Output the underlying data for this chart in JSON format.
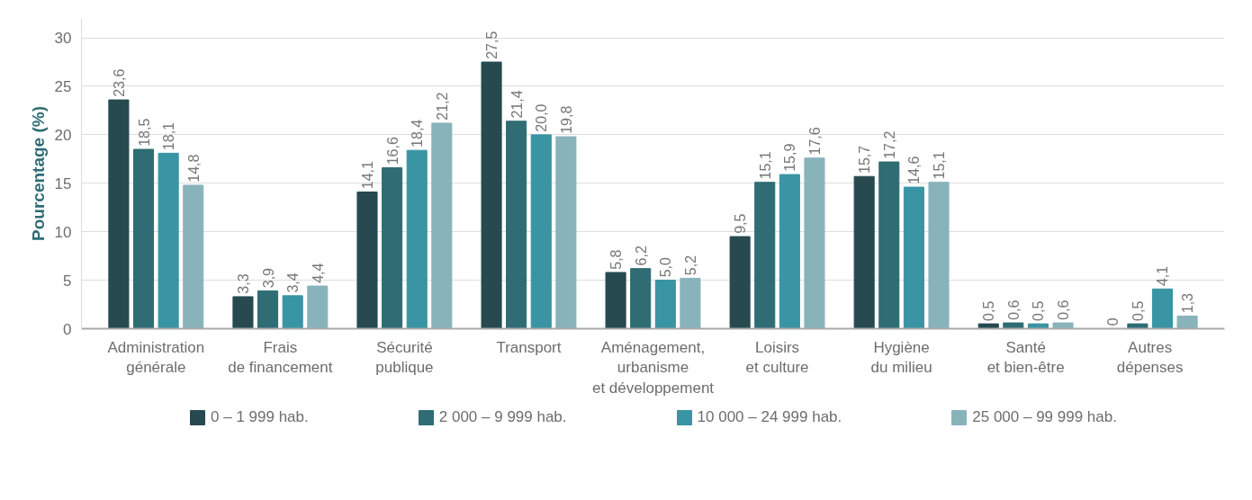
{
  "chart_data": {
    "type": "bar",
    "ylabel": "Pourcentage (%)",
    "categories": [
      "Administration\ngénérale",
      "Frais\nde financement",
      "Sécurité\npublique",
      "Transport",
      "Aménagement,\nurbanisme\net développement",
      "Loisirs\net culture",
      "Hygiène\ndu milieu",
      "Santé\net bien-être",
      "Autres\ndépenses"
    ],
    "series": [
      {
        "name": "0 – 1 999 hab.",
        "color": "#264a50",
        "values": [
          23.6,
          3.3,
          14.1,
          27.5,
          5.8,
          9.5,
          15.7,
          0.5,
          0
        ],
        "value_labels": [
          "23,6",
          "3,3",
          "14,1",
          "27,5",
          "5,8",
          "9,5",
          "15,7",
          "0,5",
          "0"
        ]
      },
      {
        "name": "2 000 – 9 999 hab.",
        "color": "#2f6c74",
        "values": [
          18.5,
          3.9,
          16.6,
          21.4,
          6.2,
          15.1,
          17.2,
          0.6,
          0.5
        ],
        "value_labels": [
          "18,5",
          "3,9",
          "16,6",
          "21,4",
          "6,2",
          "15,1",
          "17,2",
          "0,6",
          "0,5"
        ]
      },
      {
        "name": "10 000 – 24 999 hab.",
        "color": "#3994a3",
        "values": [
          18.1,
          3.4,
          18.4,
          20.0,
          5.0,
          15.9,
          14.6,
          0.5,
          4.1
        ],
        "value_labels": [
          "18,1",
          "3,4",
          "18,4",
          "20,0",
          "5,0",
          "15,9",
          "14,6",
          "0,5",
          "4,1"
        ]
      },
      {
        "name": "25 000 – 99 999 hab.",
        "color": "#89b3bb",
        "values": [
          14.8,
          4.4,
          21.2,
          19.8,
          5.2,
          17.6,
          15.1,
          0.6,
          1.3
        ],
        "value_labels": [
          "14,8",
          "4,4",
          "21,2",
          "19,8",
          "5,2",
          "17,6",
          "15,1",
          "0,6",
          "1,3"
        ]
      }
    ],
    "ylim": [
      0,
      32
    ],
    "yticks": [
      0,
      5,
      10,
      15,
      20,
      25,
      30
    ],
    "grid": "y",
    "legend": "bottom"
  }
}
